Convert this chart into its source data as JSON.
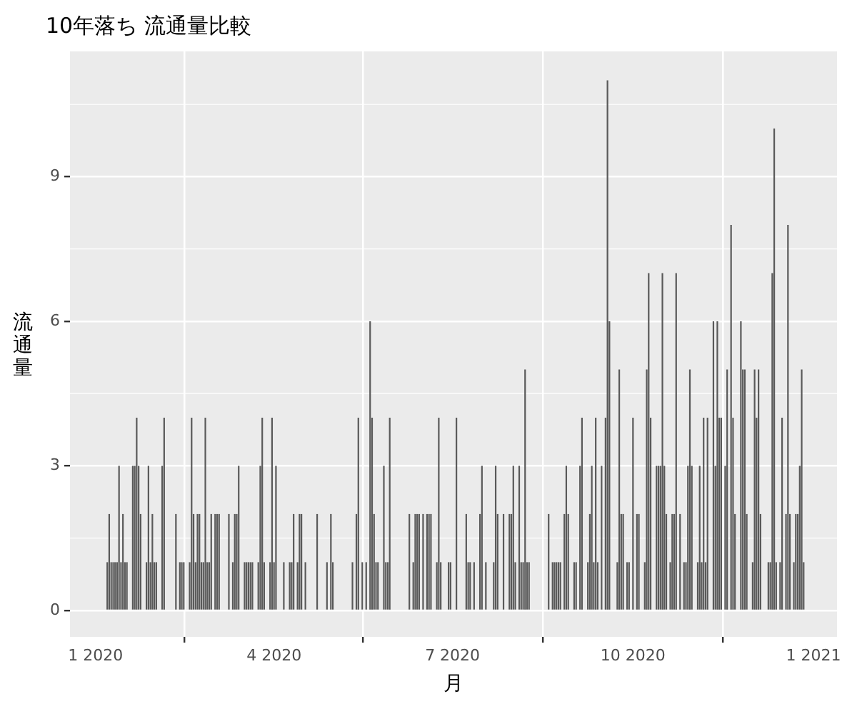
{
  "chart_data": {
    "type": "bar",
    "title": "10年落ち 流通量比較",
    "xlabel": "月",
    "ylabel": "流通量",
    "color": "#595959",
    "grid": true,
    "legend": false,
    "xlim": [
      "2019-12-19",
      "2021-01-13"
    ],
    "xticks": [
      {
        "value": "2020-01-01",
        "label": "1 2020"
      },
      {
        "value": "2020-04-01",
        "label": "4 2020"
      },
      {
        "value": "2020-07-01",
        "label": "7 2020"
      },
      {
        "value": "2020-10-01",
        "label": "10 2020"
      },
      {
        "value": "2021-01-01",
        "label": "1 2021"
      }
    ],
    "ylim": [
      -0.55,
      11.6
    ],
    "yticks": [
      0,
      3,
      6,
      9
    ],
    "x": [
      "2020-01-07",
      "2020-01-08",
      "2020-01-09",
      "2020-01-10",
      "2020-01-11",
      "2020-01-12",
      "2020-01-13",
      "2020-01-14",
      "2020-01-15",
      "2020-01-16",
      "2020-01-17",
      "2020-01-20",
      "2020-01-21",
      "2020-01-22",
      "2020-01-23",
      "2020-01-24",
      "2020-01-27",
      "2020-01-28",
      "2020-01-29",
      "2020-01-30",
      "2020-01-31",
      "2020-02-01",
      "2020-02-04",
      "2020-02-05",
      "2020-02-11",
      "2020-02-13",
      "2020-02-14",
      "2020-02-15",
      "2020-02-18",
      "2020-02-19",
      "2020-02-20",
      "2020-02-21",
      "2020-02-22",
      "2020-02-23",
      "2020-02-24",
      "2020-02-25",
      "2020-02-26",
      "2020-02-27",
      "2020-02-28",
      "2020-02-29",
      "2020-03-02",
      "2020-03-03",
      "2020-03-04",
      "2020-03-09",
      "2020-03-11",
      "2020-03-12",
      "2020-03-13",
      "2020-03-14",
      "2020-03-17",
      "2020-03-18",
      "2020-03-19",
      "2020-03-20",
      "2020-03-21",
      "2020-03-24",
      "2020-03-25",
      "2020-03-26",
      "2020-03-27",
      "2020-03-30",
      "2020-03-31",
      "2020-04-01",
      "2020-04-02",
      "2020-04-06",
      "2020-04-09",
      "2020-04-10",
      "2020-04-11",
      "2020-04-13",
      "2020-04-14",
      "2020-04-15",
      "2020-04-17",
      "2020-04-23",
      "2020-04-28",
      "2020-04-30",
      "2020-05-01",
      "2020-05-11",
      "2020-05-13",
      "2020-05-14",
      "2020-05-16",
      "2020-05-18",
      "2020-05-20",
      "2020-05-21",
      "2020-05-22",
      "2020-05-23",
      "2020-05-24",
      "2020-05-27",
      "2020-05-28",
      "2020-05-29",
      "2020-05-30",
      "2020-06-09",
      "2020-06-11",
      "2020-06-12",
      "2020-06-13",
      "2020-06-14",
      "2020-06-16",
      "2020-06-18",
      "2020-06-19",
      "2020-06-20",
      "2020-06-23",
      "2020-06-24",
      "2020-06-25",
      "2020-06-29",
      "2020-06-30",
      "2020-07-03",
      "2020-07-08",
      "2020-07-09",
      "2020-07-10",
      "2020-07-12",
      "2020-07-15",
      "2020-07-16",
      "2020-07-18",
      "2020-07-22",
      "2020-07-23",
      "2020-07-24",
      "2020-07-27",
      "2020-07-30",
      "2020-07-31",
      "2020-08-01",
      "2020-08-02",
      "2020-08-04",
      "2020-08-05",
      "2020-08-06",
      "2020-08-07",
      "2020-08-08",
      "2020-08-09",
      "2020-08-19",
      "2020-08-21",
      "2020-08-22",
      "2020-08-23",
      "2020-08-24",
      "2020-08-25",
      "2020-08-27",
      "2020-08-28",
      "2020-08-29",
      "2020-09-01",
      "2020-09-02",
      "2020-09-04",
      "2020-09-05",
      "2020-09-08",
      "2020-09-09",
      "2020-09-10",
      "2020-09-11",
      "2020-09-12",
      "2020-09-13",
      "2020-09-15",
      "2020-09-17",
      "2020-09-18",
      "2020-09-19",
      "2020-09-23",
      "2020-09-24",
      "2020-09-25",
      "2020-09-26",
      "2020-09-28",
      "2020-09-29",
      "2020-10-01",
      "2020-10-03",
      "2020-10-04",
      "2020-10-07",
      "2020-10-08",
      "2020-10-09",
      "2020-10-10",
      "2020-10-13",
      "2020-10-14",
      "2020-10-15",
      "2020-10-16",
      "2020-10-17",
      "2020-10-18",
      "2020-10-20",
      "2020-10-21",
      "2020-10-22",
      "2020-10-23",
      "2020-10-25",
      "2020-10-27",
      "2020-10-28",
      "2020-10-29",
      "2020-10-30",
      "2020-10-31",
      "2020-11-03",
      "2020-11-04",
      "2020-11-05",
      "2020-11-06",
      "2020-11-07",
      "2020-11-08",
      "2020-11-11",
      "2020-11-12",
      "2020-11-13",
      "2020-11-14",
      "2020-11-15",
      "2020-11-17",
      "2020-11-18",
      "2020-11-20",
      "2020-11-21",
      "2020-11-22",
      "2020-11-25",
      "2020-11-26",
      "2020-11-27",
      "2020-11-28",
      "2020-12-01",
      "2020-12-02",
      "2020-12-03",
      "2020-12-04",
      "2020-12-05",
      "2020-12-09",
      "2020-12-10",
      "2020-12-11",
      "2020-12-12",
      "2020-12-13",
      "2020-12-15",
      "2020-12-16",
      "2020-12-18",
      "2020-12-19",
      "2020-12-20",
      "2020-12-22",
      "2020-12-23",
      "2020-12-24",
      "2020-12-25",
      "2020-12-26",
      "2020-12-27"
    ],
    "values": [
      1,
      2,
      1,
      1,
      1,
      1,
      3,
      1,
      2,
      1,
      1,
      3,
      3,
      4,
      3,
      2,
      1,
      3,
      1,
      2,
      1,
      1,
      3,
      4,
      2,
      1,
      1,
      1,
      1,
      4,
      2,
      1,
      2,
      2,
      1,
      1,
      4,
      1,
      1,
      2,
      2,
      2,
      2,
      2,
      1,
      2,
      2,
      3,
      1,
      1,
      1,
      1,
      1,
      1,
      3,
      4,
      1,
      1,
      4,
      1,
      3,
      1,
      1,
      1,
      2,
      1,
      2,
      2,
      1,
      2,
      1,
      2,
      1,
      1,
      2,
      4,
      1,
      1,
      6,
      4,
      2,
      1,
      1,
      3,
      1,
      1,
      4,
      2,
      1,
      2,
      2,
      2,
      2,
      2,
      2,
      2,
      1,
      4,
      1,
      1,
      1,
      4,
      2,
      1,
      1,
      1,
      2,
      3,
      1,
      1,
      3,
      2,
      2,
      2,
      2,
      3,
      1,
      3,
      1,
      1,
      5,
      1,
      1,
      2,
      1,
      1,
      1,
      1,
      1,
      2,
      3,
      2,
      1,
      1,
      3,
      4,
      1,
      2,
      3,
      1,
      4,
      1,
      3,
      4,
      11,
      6,
      1,
      5,
      2,
      2,
      1,
      1,
      4,
      2,
      2,
      1,
      5,
      7,
      4,
      3,
      3,
      3,
      7,
      3,
      2,
      1,
      2,
      2,
      7,
      2,
      1,
      1,
      3,
      5,
      3,
      1,
      3,
      1,
      4,
      1,
      4,
      6,
      3,
      6,
      4,
      4,
      3,
      5,
      8,
      4,
      2,
      6,
      5,
      5,
      2,
      1,
      5,
      4,
      5,
      2,
      1,
      1,
      7,
      10,
      1,
      1,
      4,
      2,
      8,
      2,
      1,
      2,
      2,
      3,
      5,
      1
    ]
  }
}
